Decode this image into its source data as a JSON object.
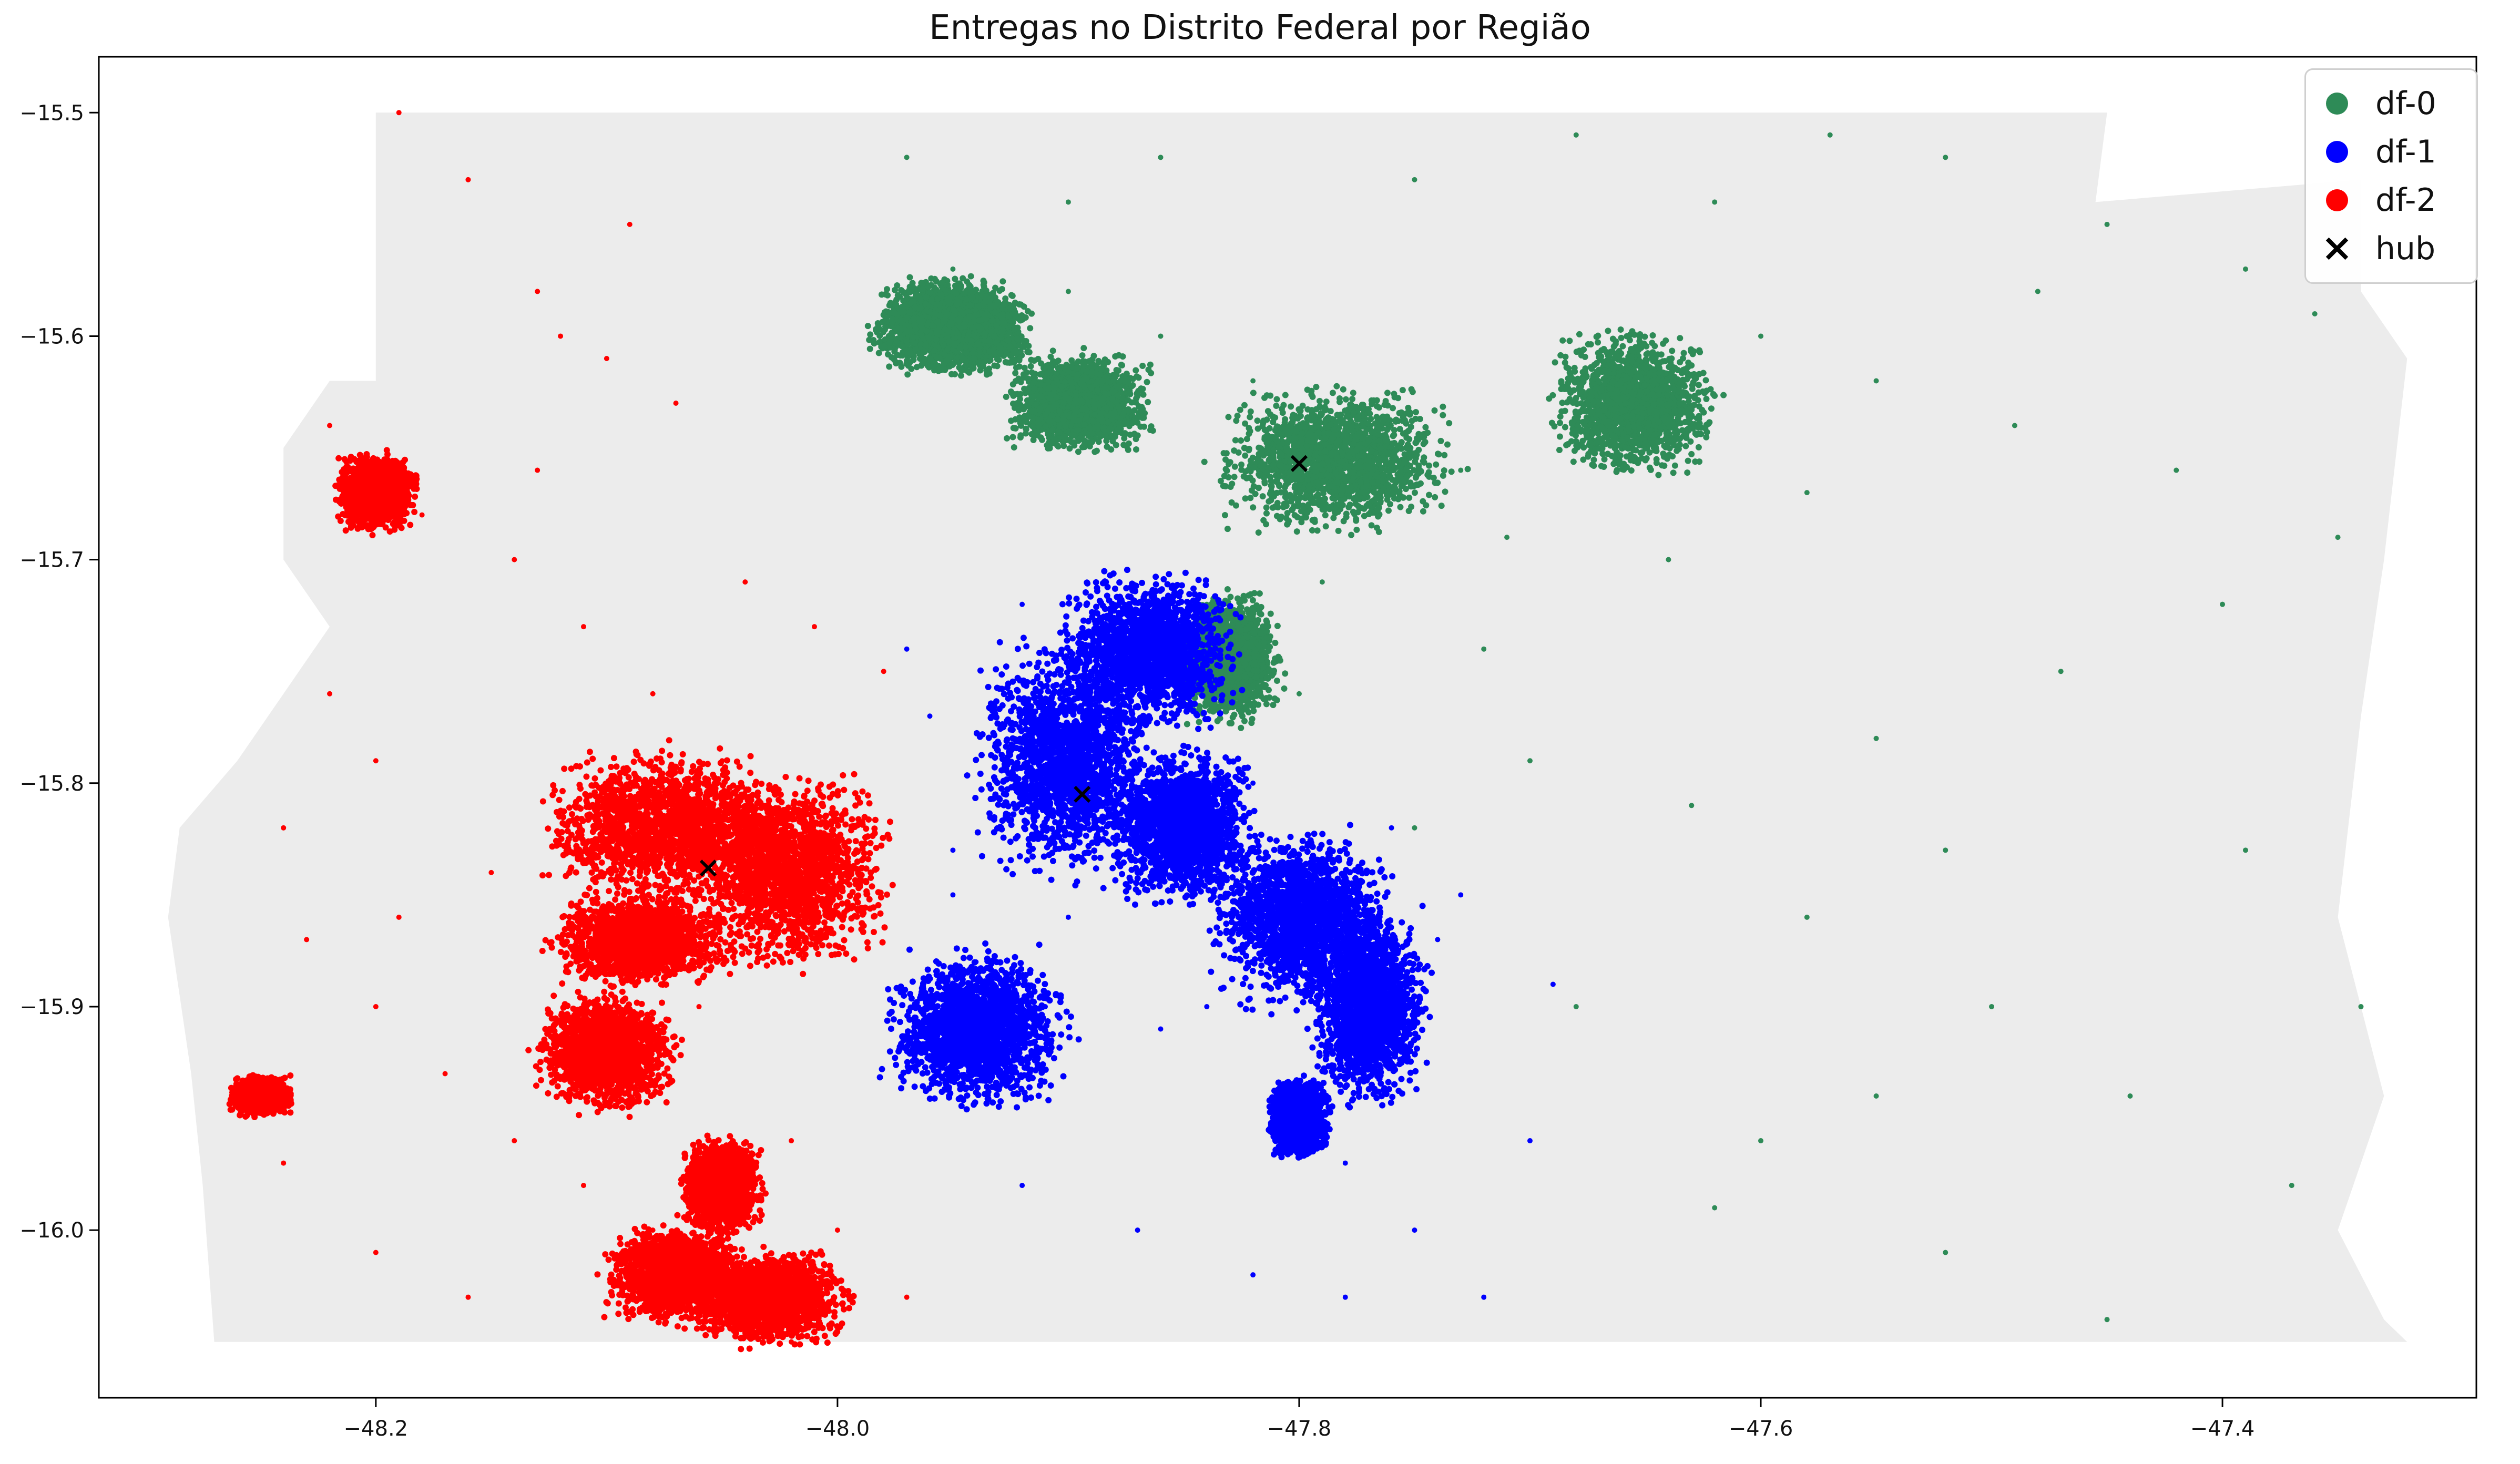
{
  "chart_data": {
    "type": "scatter",
    "title": "Entregas no Distrito Federal por Região",
    "xlabel": "",
    "ylabel": "",
    "xlim": [
      -48.32,
      -47.29
    ],
    "ylim": [
      -16.075,
      -15.475
    ],
    "xticks": [
      -48.2,
      -48.0,
      -47.8,
      -47.6,
      -47.4
    ],
    "yticks": [
      -15.5,
      -15.6,
      -15.7,
      -15.8,
      -15.9,
      -16.0
    ],
    "xtick_labels": [
      "−48.2",
      "−48.0",
      "−47.8",
      "−47.6",
      "−47.4"
    ],
    "ytick_labels": [
      "−15.5",
      "−15.6",
      "−15.7",
      "−15.8",
      "−15.9",
      "−16.0"
    ],
    "grid": false,
    "legend_position": "top-right",
    "background_region_color": "#ececec",
    "background_region_outline": [
      [
        -48.2,
        -15.5
      ],
      [
        -47.97,
        -15.5
      ],
      [
        -47.78,
        -15.5
      ],
      [
        -47.45,
        -15.5
      ],
      [
        -47.455,
        -15.54
      ],
      [
        -47.34,
        -15.53
      ],
      [
        -47.34,
        -15.58
      ],
      [
        -47.32,
        -15.61
      ],
      [
        -47.33,
        -15.7
      ],
      [
        -47.34,
        -15.77
      ],
      [
        -47.35,
        -15.86
      ],
      [
        -47.33,
        -15.94
      ],
      [
        -47.35,
        -16.0
      ],
      [
        -47.33,
        -16.04
      ],
      [
        -47.32,
        -16.05
      ],
      [
        -47.93,
        -16.05
      ],
      [
        -48.27,
        -16.05
      ],
      [
        -48.275,
        -15.98
      ],
      [
        -48.28,
        -15.93
      ],
      [
        -48.29,
        -15.86
      ],
      [
        -48.285,
        -15.82
      ],
      [
        -48.26,
        -15.79
      ],
      [
        -48.24,
        -15.76
      ],
      [
        -48.22,
        -15.73
      ],
      [
        -48.24,
        -15.7
      ],
      [
        -48.24,
        -15.65
      ],
      [
        -48.22,
        -15.62
      ],
      [
        -48.2,
        -15.62
      ]
    ],
    "series": [
      {
        "name": "df-0",
        "color": "#2e8b57",
        "marker": "point",
        "points": [
          [
            -47.97,
            -15.52
          ],
          [
            -47.9,
            -15.54
          ],
          [
            -47.86,
            -15.52
          ],
          [
            -47.75,
            -15.53
          ],
          [
            -47.68,
            -15.51
          ],
          [
            -47.62,
            -15.54
          ],
          [
            -47.57,
            -15.51
          ],
          [
            -47.52,
            -15.52
          ],
          [
            -47.45,
            -15.55
          ],
          [
            -47.39,
            -15.57
          ],
          [
            -47.36,
            -15.59
          ],
          [
            -47.95,
            -15.57
          ],
          [
            -47.9,
            -15.58
          ],
          [
            -47.86,
            -15.6
          ],
          [
            -47.82,
            -15.62
          ],
          [
            -47.78,
            -15.64
          ],
          [
            -47.73,
            -15.66
          ],
          [
            -47.66,
            -15.63
          ],
          [
            -47.6,
            -15.6
          ],
          [
            -47.55,
            -15.62
          ],
          [
            -47.49,
            -15.64
          ],
          [
            -47.42,
            -15.66
          ],
          [
            -47.35,
            -15.69
          ],
          [
            -47.4,
            -15.72
          ],
          [
            -47.47,
            -15.75
          ],
          [
            -47.55,
            -15.78
          ],
          [
            -47.63,
            -15.81
          ],
          [
            -47.7,
            -15.79
          ],
          [
            -47.75,
            -15.82
          ],
          [
            -47.8,
            -15.76
          ],
          [
            -47.84,
            -15.72
          ],
          [
            -47.72,
            -15.74
          ],
          [
            -47.58,
            -15.86
          ],
          [
            -47.5,
            -15.9
          ],
          [
            -47.44,
            -15.94
          ],
          [
            -47.37,
            -15.98
          ],
          [
            -47.6,
            -15.96
          ],
          [
            -47.52,
            -16.01
          ],
          [
            -47.45,
            -16.04
          ],
          [
            -47.68,
            -15.9
          ],
          [
            -47.34,
            -15.9
          ],
          [
            -47.39,
            -15.83
          ],
          [
            -47.52,
            -15.83
          ],
          [
            -47.64,
            -15.7
          ],
          [
            -47.58,
            -15.67
          ],
          [
            -47.71,
            -15.69
          ],
          [
            -47.79,
            -15.71
          ],
          [
            -47.48,
            -15.58
          ],
          [
            -47.62,
            -15.99
          ],
          [
            -47.55,
            -15.94
          ]
        ],
        "dense_clusters": [
          [
            -47.785,
            -15.655,
            0.06,
            0.038
          ],
          [
            -47.655,
            -15.63,
            0.04,
            0.037
          ],
          [
            -47.83,
            -15.744,
            0.025,
            0.033
          ],
          [
            -47.895,
            -15.63,
            0.035,
            0.025
          ],
          [
            -47.95,
            -15.6,
            0.04,
            0.02
          ],
          [
            -47.95,
            -15.59,
            0.035,
            0.018
          ]
        ]
      },
      {
        "name": "df-1",
        "color": "#0000ff",
        "marker": "point",
        "points": [
          [
            -47.96,
            -15.77
          ],
          [
            -47.95,
            -15.85
          ],
          [
            -47.94,
            -15.88
          ],
          [
            -47.91,
            -15.9
          ],
          [
            -47.86,
            -15.91
          ],
          [
            -47.8,
            -15.94
          ],
          [
            -47.78,
            -15.97
          ],
          [
            -47.75,
            -16.0
          ],
          [
            -47.72,
            -16.03
          ],
          [
            -47.7,
            -15.96
          ],
          [
            -47.69,
            -15.89
          ],
          [
            -47.73,
            -15.85
          ],
          [
            -47.76,
            -15.82
          ],
          [
            -47.82,
            -15.8
          ],
          [
            -47.86,
            -15.79
          ],
          [
            -47.89,
            -15.77
          ],
          [
            -47.92,
            -15.72
          ],
          [
            -47.97,
            -15.74
          ],
          [
            -47.95,
            -15.83
          ],
          [
            -47.9,
            -15.86
          ],
          [
            -47.84,
            -15.9
          ],
          [
            -47.77,
            -15.92
          ],
          [
            -47.74,
            -15.87
          ],
          [
            -47.8,
            -15.86
          ],
          [
            -47.83,
            -15.83
          ],
          [
            -47.86,
            -15.75
          ],
          [
            -47.82,
            -16.02
          ],
          [
            -47.78,
            -16.03
          ],
          [
            -47.87,
            -16.0
          ],
          [
            -47.92,
            -15.98
          ]
        ],
        "dense_clusters": [
          [
            -47.9,
            -15.79,
            0.045,
            0.06
          ],
          [
            -47.865,
            -15.74,
            0.045,
            0.04
          ],
          [
            -47.8,
            -15.86,
            0.045,
            0.045
          ],
          [
            -47.94,
            -15.91,
            0.045,
            0.04
          ],
          [
            -47.77,
            -15.9,
            0.03,
            0.05
          ],
          [
            -47.85,
            -15.82,
            0.035,
            0.04
          ],
          [
            -47.8,
            -15.95,
            0.015,
            0.02
          ]
        ]
      },
      {
        "name": "df-2",
        "color": "#ff0000",
        "marker": "point",
        "points": [
          [
            -48.19,
            -15.5
          ],
          [
            -48.16,
            -15.53
          ],
          [
            -48.13,
            -15.58
          ],
          [
            -48.1,
            -15.61
          ],
          [
            -48.07,
            -15.63
          ],
          [
            -48.22,
            -15.64
          ],
          [
            -48.18,
            -15.68
          ],
          [
            -48.14,
            -15.7
          ],
          [
            -48.11,
            -15.73
          ],
          [
            -48.08,
            -15.76
          ],
          [
            -48.05,
            -15.79
          ],
          [
            -48.22,
            -15.76
          ],
          [
            -48.2,
            -15.79
          ],
          [
            -48.24,
            -15.82
          ],
          [
            -48.23,
            -15.87
          ],
          [
            -48.2,
            -15.9
          ],
          [
            -48.17,
            -15.93
          ],
          [
            -48.14,
            -15.96
          ],
          [
            -48.11,
            -15.98
          ],
          [
            -48.08,
            -16.0
          ],
          [
            -48.05,
            -16.03
          ],
          [
            -48.02,
            -16.05
          ],
          [
            -48.2,
            -16.01
          ],
          [
            -48.24,
            -15.97
          ],
          [
            -48.16,
            -16.03
          ],
          [
            -48.13,
            -15.66
          ],
          [
            -48.12,
            -15.6
          ],
          [
            -48.09,
            -15.55
          ],
          [
            -48.04,
            -15.71
          ],
          [
            -48.01,
            -15.73
          ],
          [
            -47.98,
            -15.75
          ],
          [
            -48.15,
            -15.84
          ],
          [
            -48.19,
            -15.86
          ],
          [
            -48.02,
            -15.96
          ],
          [
            -48.0,
            -16.0
          ],
          [
            -47.97,
            -16.03
          ],
          [
            -48.06,
            -15.9
          ],
          [
            -48.09,
            -15.94
          ]
        ],
        "dense_clusters": [
          [
            -48.075,
            -15.82,
            0.06,
            0.04
          ],
          [
            -48.02,
            -15.84,
            0.05,
            0.05
          ],
          [
            -48.085,
            -15.87,
            0.045,
            0.025
          ],
          [
            -48.1,
            -15.92,
            0.035,
            0.03
          ],
          [
            -48.07,
            -16.02,
            0.035,
            0.025
          ],
          [
            -48.03,
            -16.03,
            0.04,
            0.025
          ],
          [
            -48.2,
            -15.67,
            0.02,
            0.02
          ],
          [
            -48.05,
            -15.98,
            0.02,
            0.025
          ],
          [
            -48.25,
            -15.94,
            0.015,
            0.01
          ]
        ]
      },
      {
        "name": "hub",
        "color": "#000000",
        "marker": "x",
        "points": [
          [
            -47.8,
            -15.657
          ],
          [
            -47.894,
            -15.805
          ],
          [
            -48.056,
            -15.838
          ]
        ]
      }
    ]
  }
}
